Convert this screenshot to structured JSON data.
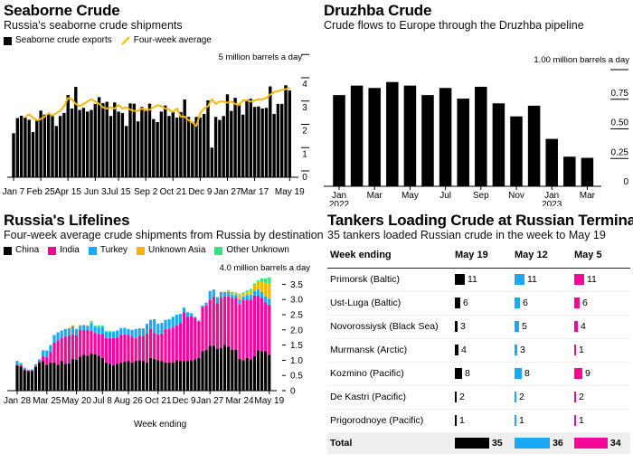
{
  "seaborne": {
    "title": "Seaborne Crude",
    "subtitle": "Russia's seaborne crude shipments",
    "legend": [
      {
        "label": "Seaborne crude exports",
        "color": "#000000",
        "icon": "square-swatch"
      },
      {
        "label": "Four-week average",
        "color": "#f5b800",
        "icon": "line-swatch"
      }
    ],
    "unit_label": "5 million barrels a day"
  },
  "druzhba": {
    "title": "Druzhba Crude",
    "subtitle": "Crude flows to Europe through the Druzhba pipeline",
    "unit_label": "1.00 million barrels a day"
  },
  "lifelines": {
    "title": "Russia's Lifelines",
    "subtitle": "Four-week average crude shipments from Russia by destination",
    "unit_label": "4.0 million barrels a day",
    "xlabel": "Week ending"
  },
  "tankers": {
    "title": "Tankers Loading Crude at Russian Terminals",
    "subtitle": "35 tankers loaded Russian crude in the week to May 19",
    "columns": [
      "Week ending",
      "May 19",
      "May 12",
      "May 5"
    ],
    "column_colors": [
      "#000000",
      "#1aaaf5",
      "#f5079a"
    ],
    "rows": [
      {
        "terminal": "Primorsk (Baltic)",
        "values": [
          11,
          11,
          11
        ]
      },
      {
        "terminal": "Ust-Luga (Baltic)",
        "values": [
          6,
          6,
          6
        ]
      },
      {
        "terminal": "Novorossiysk (Black Sea)",
        "values": [
          3,
          5,
          4
        ]
      },
      {
        "terminal": "Murmansk (Arctic)",
        "values": [
          4,
          3,
          1
        ]
      },
      {
        "terminal": "Kozmino (Pacific)",
        "values": [
          8,
          8,
          9
        ]
      },
      {
        "terminal": "De Kastri (Pacific)",
        "values": [
          2,
          2,
          2
        ]
      },
      {
        "terminal": "Prigorodnoye (Pacific)",
        "values": [
          1,
          1,
          1
        ]
      }
    ],
    "total": {
      "label": "Total",
      "values": [
        35,
        36,
        34
      ]
    }
  },
  "chart_data": [
    {
      "type": "bar",
      "title": "Seaborne Crude",
      "subtitle": "Russia's seaborne crude shipments",
      "ylabel": "5 million barrels a day",
      "ylim": [
        0,
        5
      ],
      "yticks": [
        0,
        1,
        2,
        3,
        4
      ],
      "xtick_labels": [
        "Jan 7",
        "Feb 25",
        "Apr 15",
        "Jun 3",
        "Jul 15",
        "Sep 2",
        "Oct 21",
        "Dec 9",
        "Jan 27",
        "Mar 17",
        "May 19"
      ],
      "xtick_weeks": [
        0,
        7,
        14,
        21,
        27,
        34,
        41,
        48,
        55,
        62,
        71
      ],
      "x_start": "Jan 7 2022",
      "x_end": "May 19 2023",
      "series": [
        {
          "name": "Seaborne crude exports",
          "type": "bar",
          "color": "#000000",
          "values": [
            1.89,
            2.54,
            2.64,
            2.56,
            2.47,
            1.94,
            2.43,
            2.86,
            2.69,
            2.72,
            2.63,
            2.2,
            2.63,
            2.76,
            3.53,
            2.95,
            3.88,
            2.89,
            2.98,
            2.82,
            2.89,
            3.15,
            3.44,
            3.18,
            3.24,
            2.63,
            3.21,
            2.82,
            2.76,
            2.2,
            3.17,
            3.16,
            2.4,
            3.02,
            2.85,
            3.16,
            2.5,
            2.37,
            2.82,
            3.08,
            2.63,
            2.85,
            2.56,
            2.8,
            3.34,
            2.59,
            2.37,
            2.59,
            2.56,
            2.72,
            3.3,
            1.27,
            2.59,
            2.46,
            2.63,
            3.56,
            2.85,
            3.41,
            3.15,
            2.69,
            3.34,
            3.37,
            3.02,
            3.04,
            2.95,
            2.98,
            3.9,
            2.72,
            3.15,
            3.15,
            3.95,
            3.73
          ]
        },
        {
          "name": "Four-week average",
          "type": "line",
          "color": "#f5b800",
          "start_index": 3,
          "values": [
            2.6,
            2.7,
            2.55,
            2.45,
            2.5,
            2.6,
            2.75,
            2.65,
            2.75,
            2.85,
            3.05,
            3.4,
            3.35,
            3.15,
            3.05,
            3.15,
            3.25,
            3.35,
            3.25,
            3.15,
            3.0,
            2.95,
            3.0,
            2.95,
            3.1,
            2.95,
            3.0,
            2.9,
            2.85,
            2.85,
            2.95,
            2.9,
            2.9,
            3.0,
            3.1,
            3.05,
            2.95,
            2.9,
            2.8,
            2.95,
            2.6,
            2.6,
            2.45,
            2.35,
            2.2,
            2.75,
            2.95,
            3.05,
            3.35,
            3.15,
            3.25,
            3.25,
            3.2,
            3.25,
            3.15,
            3.1,
            3.3,
            3.3,
            3.25,
            3.3,
            3.35,
            3.35,
            3.4,
            3.55,
            3.65,
            3.7,
            3.75,
            3.78,
            3.85
          ]
        }
      ]
    },
    {
      "type": "bar",
      "title": "Druzhba Crude",
      "subtitle": "Crude flows to Europe through the Druzhba pipeline",
      "ylabel": "1.00 million barrels a day",
      "ylim": [
        0,
        1.0
      ],
      "yticks": [
        0,
        0.25,
        0.5,
        0.75
      ],
      "ytick_labels": [
        "0",
        "0.25",
        "0.50",
        "0.75"
      ],
      "categories": [
        "Jan 2022",
        "Feb",
        "Mar",
        "Apr",
        "May",
        "Jun",
        "Jul",
        "Aug",
        "Sep",
        "Oct",
        "Nov",
        "Dec",
        "Jan 2023",
        "Feb",
        "Mar"
      ],
      "xtick_labels": [
        {
          "index": 0,
          "label": "Jan",
          "sub": "2022"
        },
        {
          "index": 2,
          "label": "Mar",
          "sub": ""
        },
        {
          "index": 4,
          "label": "May",
          "sub": ""
        },
        {
          "index": 6,
          "label": "Jul",
          "sub": ""
        },
        {
          "index": 8,
          "label": "Sep",
          "sub": ""
        },
        {
          "index": 10,
          "label": "Nov",
          "sub": ""
        },
        {
          "index": 12,
          "label": "Jan",
          "sub": "2023"
        },
        {
          "index": 14,
          "label": "Mar",
          "sub": ""
        }
      ],
      "values": [
        0.77,
        0.85,
        0.83,
        0.88,
        0.85,
        0.77,
        0.83,
        0.74,
        0.84,
        0.7,
        0.59,
        0.68,
        0.4,
        0.25,
        0.24
      ],
      "color": "#000000"
    },
    {
      "type": "bar",
      "stacked": true,
      "title": "Russia's Lifelines",
      "subtitle": "Four-week average crude shipments from Russia by destination",
      "ylabel": "4.0 million barrels a day",
      "xlabel": "Week ending",
      "ylim": [
        0,
        4.0
      ],
      "yticks": [
        0,
        0.5,
        1.0,
        1.5,
        2.0,
        2.5,
        3.0,
        3.5
      ],
      "ytick_labels": [
        "0",
        "0.5",
        "1.0",
        "1.5",
        "2.0",
        "2.5",
        "3.0",
        "3.5"
      ],
      "xtick_labels": [
        "Jan 28",
        "Mar 25",
        "May 20",
        "Jul 8",
        "Aug 26",
        "Oct 21",
        "Dec 9",
        "Jan 27",
        "Mar 24",
        "May 19"
      ],
      "xtick_weeks": [
        0,
        8,
        16,
        23,
        30,
        38,
        45,
        52,
        60,
        68
      ],
      "series": [
        {
          "name": "China",
          "color": "#000000",
          "values": [
            0.83,
            0.8,
            0.68,
            0.64,
            0.65,
            0.78,
            0.93,
            0.98,
            0.85,
            0.93,
            0.93,
            0.85,
            0.98,
            0.88,
            0.9,
            1.05,
            1.02,
            1.12,
            1.18,
            1.15,
            1.22,
            1.2,
            1.15,
            1.08,
            0.93,
            0.88,
            0.83,
            0.88,
            0.92,
            0.95,
            0.98,
            0.93,
            0.98,
            1.0,
            0.98,
            0.93,
            1.08,
            1.05,
            1.0,
            0.98,
            0.93,
            0.93,
            0.93,
            1.0,
            0.98,
            0.98,
            0.98,
            1.0,
            1.03,
            1.08,
            1.3,
            1.35,
            1.48,
            1.48,
            1.38,
            1.4,
            1.5,
            1.45,
            1.35,
            1.35,
            1.05,
            1.0,
            1.08,
            1.03,
            1.13,
            1.33,
            1.3,
            1.3,
            1.18
          ]
        },
        {
          "name": "India",
          "color": "#f5079a",
          "values": [
            0.02,
            0.03,
            0.02,
            0.02,
            0.02,
            0.04,
            0.05,
            0.15,
            0.25,
            0.35,
            0.65,
            0.8,
            0.75,
            0.9,
            0.9,
            0.8,
            0.8,
            0.88,
            0.82,
            0.85,
            0.75,
            0.7,
            0.72,
            0.8,
            0.8,
            0.85,
            0.9,
            0.88,
            0.92,
            0.9,
            0.85,
            0.85,
            0.75,
            0.8,
            0.82,
            0.95,
            0.95,
            0.85,
            0.85,
            0.9,
            1.1,
            1.1,
            1.15,
            1.15,
            1.25,
            1.6,
            1.45,
            1.45,
            1.35,
            1.2,
            1.45,
            1.45,
            1.5,
            1.6,
            1.5,
            1.65,
            1.6,
            1.65,
            1.7,
            1.7,
            1.8,
            2.0,
            1.92,
            1.97,
            2.0,
            1.8,
            1.75,
            1.6,
            1.65
          ]
        },
        {
          "name": "Turkey",
          "color": "#1aaaf5",
          "values": [
            0.13,
            0.08,
            0.05,
            0.03,
            0.03,
            0.05,
            0.05,
            0.2,
            0.22,
            0.22,
            0.25,
            0.27,
            0.25,
            0.25,
            0.25,
            0.27,
            0.2,
            0.13,
            0.15,
            0.13,
            0.25,
            0.2,
            0.22,
            0.2,
            0.2,
            0.2,
            0.22,
            0.22,
            0.22,
            0.22,
            0.2,
            0.22,
            0.3,
            0.25,
            0.25,
            0.32,
            0.3,
            0.45,
            0.35,
            0.35,
            0.3,
            0.32,
            0.35,
            0.35,
            0.3,
            0.15,
            0.15,
            0.1,
            0.05,
            0.03,
            0.05,
            0.1,
            0.3,
            0.25,
            0.2,
            0.2,
            0.15,
            0.15,
            0.1,
            0.1,
            0.15,
            0.1,
            0.15,
            0.15,
            0.15,
            0.2,
            0.2,
            0.2,
            0.2
          ]
        },
        {
          "name": "Unknown Asia",
          "color": "#f7b500",
          "values": [
            0,
            0,
            0,
            0,
            0,
            0,
            0,
            0,
            0,
            0,
            0,
            0,
            0,
            0,
            0.02,
            0.03,
            0.02,
            0.03,
            0.02,
            0.02,
            0.02,
            0,
            0,
            0,
            0,
            0,
            0,
            0,
            0,
            0,
            0,
            0,
            0,
            0,
            0,
            0,
            0,
            0,
            0,
            0,
            0,
            0,
            0,
            0,
            0,
            0,
            0,
            0,
            0,
            0,
            0,
            0,
            0,
            0,
            0,
            0,
            0,
            0.03,
            0.05,
            0.05,
            0.15,
            0.1,
            0.1,
            0.15,
            0.2,
            0.25,
            0.35,
            0.45,
            0.5
          ]
        },
        {
          "name": "Other Unknown",
          "color": "#2fe67e",
          "values": [
            0,
            0,
            0,
            0,
            0,
            0,
            0,
            0,
            0,
            0,
            0,
            0,
            0,
            0,
            0,
            0,
            0,
            0,
            0,
            0,
            0.05,
            0.04,
            0.06,
            0.06,
            0.03,
            0.03,
            0,
            0,
            0,
            0,
            0,
            0,
            0,
            0,
            0,
            0,
            0,
            0,
            0,
            0,
            0,
            0,
            0,
            0,
            0,
            0,
            0,
            0,
            0,
            0,
            0,
            0,
            0,
            0,
            0,
            0,
            0,
            0.03,
            0.05,
            0.03,
            0.03,
            0.03,
            0.05,
            0.05,
            0.05,
            0.05,
            0.1,
            0.15,
            0.2
          ]
        }
      ]
    }
  ]
}
